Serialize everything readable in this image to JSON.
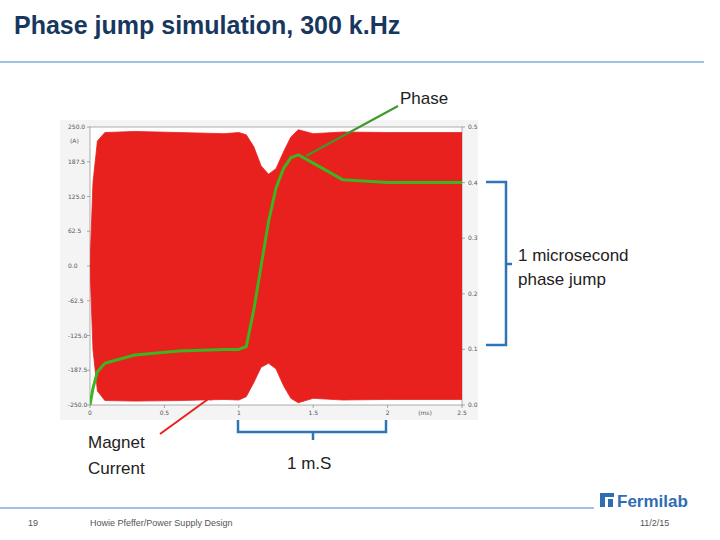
{
  "slide": {
    "title": "Phase jump simulation, 300 k.Hz",
    "page": "19",
    "author": "Howie Pfeffer/Power Supply Design",
    "date": "11/2/15",
    "logo": "Fermilab"
  },
  "annotations": {
    "phase": "Phase",
    "jump": [
      "1 microsecond",
      "phase jump"
    ],
    "current": [
      "Magnet",
      "Current"
    ],
    "span": "1 m.S"
  },
  "chart_data": {
    "type": "line",
    "x_label": "(ms)",
    "y_label": "(A)",
    "x": [
      0,
      0.02,
      0.05,
      0.1,
      0.3,
      0.6,
      0.9,
      1.0,
      1.05,
      1.1,
      1.15,
      1.2,
      1.25,
      1.3,
      1.35,
      1.4,
      1.5,
      1.7,
      2.0,
      2.5
    ],
    "xlim": [
      0,
      2.5
    ],
    "xticks": [
      0,
      0.5,
      1,
      1.5,
      2,
      2.5
    ],
    "ylim": [
      -250,
      250
    ],
    "yticks": [
      {
        "value": -250,
        "label": "-250.0"
      },
      {
        "value": -187.5,
        "label": "-187.5"
      },
      {
        "value": -125,
        "label": "-125.0"
      },
      {
        "value": -62.5,
        "label": "-62.5"
      },
      {
        "value": 0,
        "label": "0.0"
      },
      {
        "value": 62.5,
        "label": "62.5"
      },
      {
        "value": 125,
        "label": "125.0"
      },
      {
        "value": 187.5,
        "label": "187.5"
      },
      {
        "value": 250,
        "label": "250.0"
      }
    ],
    "y2lim": [
      0,
      0.5
    ],
    "y2ticks": [
      {
        "value": 0,
        "label": "0.0"
      },
      0.1,
      0.2,
      0.3,
      0.4,
      0.5
    ],
    "series": [
      {
        "name": "Magnet Current",
        "type": "area",
        "color": "#e8201e",
        "values": [
          0,
          150,
          225,
          240,
          242,
          240,
          238,
          240,
          236,
          215,
          180,
          165,
          175,
          205,
          232,
          245,
          238,
          241,
          240,
          240
        ],
        "lows": [
          0,
          -150,
          -225,
          -242,
          -243,
          -242,
          -240,
          -241,
          -235,
          -210,
          -182,
          -175,
          -185,
          -215,
          -238,
          -246,
          -238,
          -241,
          -240,
          -240
        ]
      },
      {
        "name": "Phase",
        "type": "line",
        "axis": "y2",
        "color": "#3cb521",
        "values": [
          0,
          0.03,
          0.06,
          0.075,
          0.09,
          0.097,
          0.1,
          0.1,
          0.105,
          0.17,
          0.25,
          0.33,
          0.39,
          0.425,
          0.445,
          0.45,
          0.435,
          0.405,
          0.4,
          0.4
        ]
      }
    ]
  }
}
